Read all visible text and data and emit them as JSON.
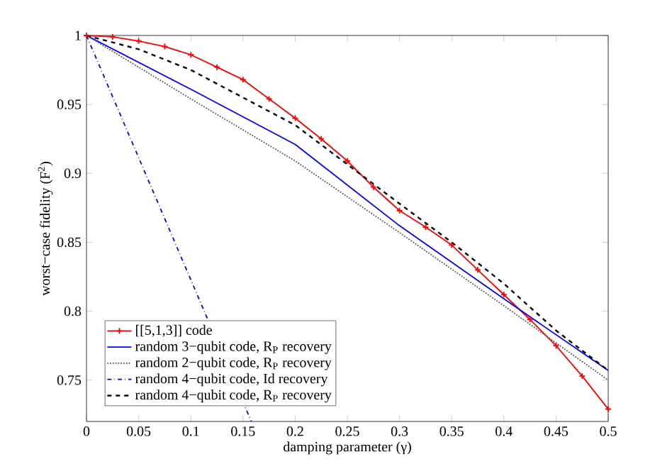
{
  "chart_data": {
    "type": "line",
    "xlabel": "damping parameter (γ)",
    "ylabel": "worst−case fidelity (F$^{2}$)",
    "xlim": [
      0,
      0.5
    ],
    "ylim": [
      0.72,
      1
    ],
    "xticks": [
      0,
      0.05,
      0.1,
      0.15,
      0.2,
      0.25,
      0.3,
      0.35,
      0.4,
      0.45,
      0.5
    ],
    "yticks": [
      0.75,
      0.8,
      0.85,
      0.9,
      0.95,
      1
    ],
    "grid": false,
    "legend": "bottom left",
    "series": [
      {
        "name": "[[5,1,3]] code",
        "color": "#ff0000",
        "marker": "cross",
        "line_style": "solid",
        "x": [
          0,
          0.025,
          0.05,
          0.075,
          0.1,
          0.125,
          0.15,
          0.175,
          0.2,
          0.225,
          0.25,
          0.275,
          0.3,
          0.325,
          0.35,
          0.375,
          0.4,
          0.425,
          0.45,
          0.475,
          0.5
        ],
        "values": [
          1,
          0.999,
          0.996,
          0.992,
          0.986,
          0.977,
          0.968,
          0.954,
          0.94,
          0.925,
          0.909,
          0.89,
          0.873,
          0.861,
          0.848,
          0.83,
          0.812,
          0.794,
          0.775,
          0.753,
          0.729
        ]
      },
      {
        "name": "random 3−qubit code, R$_{P}$ recovery",
        "color": "#0000ff",
        "line_style": "solid",
        "x": [
          0,
          0.1,
          0.2,
          0.3,
          0.4,
          0.5
        ],
        "values": [
          1,
          0.961,
          0.921,
          0.862,
          0.809,
          0.757
        ]
      },
      {
        "name": "random 2−qubit code, R$_{P}$ recovery",
        "color": "#555555",
        "line_style": "dotted",
        "x": [
          0,
          0.1,
          0.2,
          0.3,
          0.4,
          0.5
        ],
        "values": [
          1,
          0.954,
          0.909,
          0.857,
          0.804,
          0.75
        ]
      },
      {
        "name": "random 4−qubit code, Id recovery",
        "color": "#0000ff",
        "line_style": "dashdot",
        "x": [
          0,
          0.158
        ],
        "values": [
          1,
          0.72
        ]
      },
      {
        "name": "random 4−qubit code, R$_{P}$ recovery",
        "color": "#000000",
        "line_style": "dashed",
        "x": [
          0,
          0.05,
          0.1,
          0.2,
          0.3,
          0.35,
          0.4,
          0.45,
          0.5
        ],
        "values": [
          1,
          0.99,
          0.975,
          0.935,
          0.878,
          0.85,
          0.82,
          0.786,
          0.757
        ]
      }
    ]
  }
}
